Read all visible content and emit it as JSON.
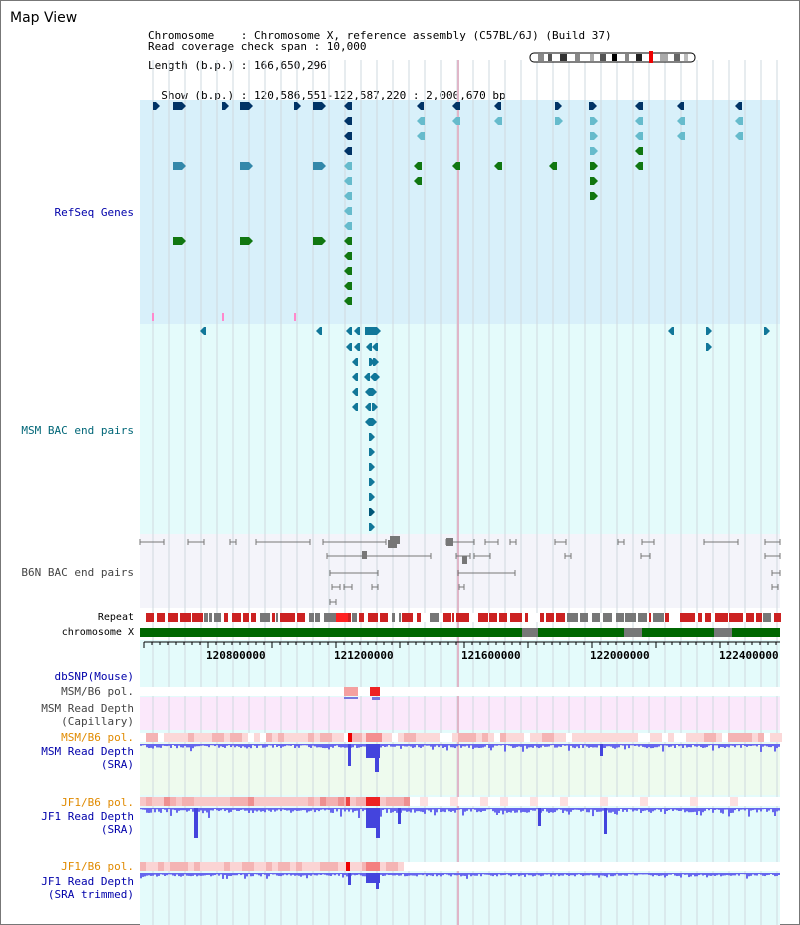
{
  "title": "Map View",
  "info": {
    "chromosome": "Chromosome    : Chromosome X, reference assembly (C57BL/6J) (Build 37)",
    "length": "Length (b.p.) : 166,650,296",
    "show": "  Show (b.p.) : 120,586,551-122,587,220 : 2,000,670 bp",
    "coverage": "Read coverage check span : 10,000"
  },
  "tracks": {
    "refseq": "RefSeq Genes",
    "msm_bac": "MSM BAC end pairs",
    "b6n_bac": "B6N BAC end pairs",
    "repeat": "Repeat",
    "chromosome": "chromosome X",
    "dbsnp": "dbSNP(Mouse)",
    "msm_b6_pol": "MSM/B6 pol.",
    "msm_cap_1": "MSM Read Depth",
    "msm_cap_2": "(Capillary)",
    "msm_b6_pol2": "MSM/B6 pol.",
    "msm_sra_1": "MSM Read Depth",
    "msm_sra_2": "(SRA)",
    "jf1_b6_pol": "JF1/B6 pol.",
    "jf1_sra_1": "JF1 Read Depth",
    "jf1_sra_2": "(SRA)",
    "jf1_b6_pol2": "JF1/B6 pol.",
    "jf1_trim_1": "JF1 Read Depth",
    "jf1_trim_2": "(SRA trimmed)"
  },
  "axis": {
    "ticks": [
      "120800000",
      "121200000",
      "121600000",
      "122000000",
      "122400000"
    ]
  },
  "colors": {
    "refseq_bg": "#d8f0fa",
    "bac_bg": "#e4fbfb",
    "gray_bg": "#f4f4fa",
    "depth_bg": "#e4fbfb",
    "capillary_bg": "#fbe8fb",
    "msm_sra_bg": "#eefbee",
    "chromosome_bar": "#006600",
    "repeat_red": "#cc2222",
    "depth_blue": "#6666ee"
  }
}
